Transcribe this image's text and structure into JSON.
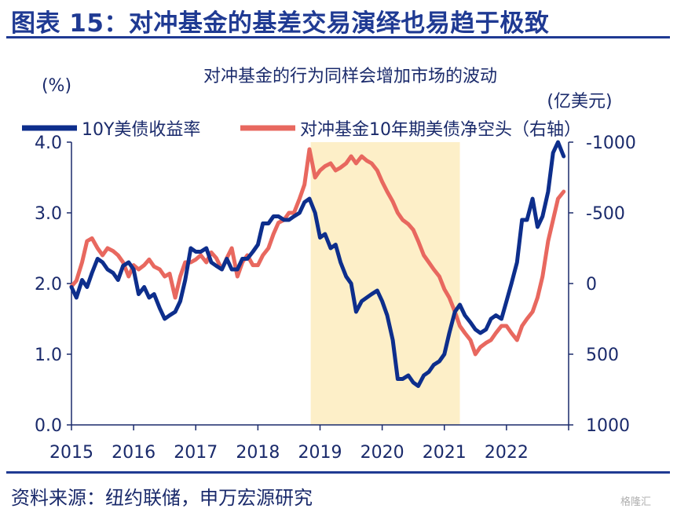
{
  "figure": {
    "title": "图表 15：对冲基金的基差交易演绎也易趋于极致",
    "source": "资料来源：纽约联储，申万宏源研究",
    "watermark": "格隆汇"
  },
  "colors": {
    "accent": "#1f3a93",
    "series_10y": "#0d2e8c",
    "series_hedge": "#e8685f",
    "highlight": "#fdefc8",
    "axis_text": "#1a2a6b"
  },
  "chart_data": {
    "type": "line",
    "title": "对冲基金的行为同样会增加市场的波动",
    "left_axis": {
      "label": "(%)",
      "ylim": [
        0.0,
        4.0
      ],
      "ticks": [
        "0.0",
        "1.0",
        "2.0",
        "3.0",
        "4.0"
      ]
    },
    "right_axis": {
      "label": "(亿美元)",
      "inverted": true,
      "ylim": [
        1000,
        -1000
      ],
      "ticks": [
        "1000",
        "500",
        "0",
        "-500",
        "-1000"
      ]
    },
    "x_axis": {
      "ticks": [
        "2015",
        "2016",
        "2017",
        "2018",
        "2019",
        "2020",
        "2021",
        "2022"
      ],
      "range": [
        2015.0,
        2023.0
      ]
    },
    "highlight_period": [
      2018.85,
      2021.25
    ],
    "legend": {
      "placement": "top",
      "labels": [
        "10Y美债收益率",
        "对冲基金10年期美债净空头（右轴）"
      ]
    },
    "series": [
      {
        "name": "10Y美债收益率",
        "axis": "left",
        "x": [
          2015.0,
          2015.08,
          2015.17,
          2015.25,
          2015.33,
          2015.42,
          2015.5,
          2015.58,
          2015.67,
          2015.75,
          2015.83,
          2015.92,
          2016.0,
          2016.08,
          2016.17,
          2016.25,
          2016.33,
          2016.42,
          2016.5,
          2016.58,
          2016.67,
          2016.75,
          2016.83,
          2016.92,
          2017.0,
          2017.08,
          2017.17,
          2017.25,
          2017.33,
          2017.42,
          2017.5,
          2017.58,
          2017.67,
          2017.75,
          2017.83,
          2017.92,
          2018.0,
          2018.08,
          2018.17,
          2018.25,
          2018.33,
          2018.42,
          2018.5,
          2018.58,
          2018.67,
          2018.75,
          2018.83,
          2018.92,
          2019.0,
          2019.08,
          2019.17,
          2019.25,
          2019.33,
          2019.42,
          2019.5,
          2019.58,
          2019.67,
          2019.75,
          2019.83,
          2019.92,
          2020.0,
          2020.08,
          2020.17,
          2020.25,
          2020.33,
          2020.42,
          2020.5,
          2020.58,
          2020.67,
          2020.75,
          2020.83,
          2020.92,
          2021.0,
          2021.08,
          2021.17,
          2021.25,
          2021.33,
          2021.42,
          2021.5,
          2021.58,
          2021.67,
          2021.75,
          2021.83,
          2021.92,
          2022.0,
          2022.08,
          2022.17,
          2022.25,
          2022.33,
          2022.42,
          2022.5,
          2022.58,
          2022.67,
          2022.75,
          2022.83,
          2022.92
        ],
        "values": [
          1.95,
          1.8,
          2.05,
          1.95,
          2.15,
          2.35,
          2.3,
          2.2,
          2.15,
          2.05,
          2.25,
          2.3,
          2.2,
          1.85,
          1.95,
          1.8,
          1.85,
          1.65,
          1.5,
          1.55,
          1.6,
          1.75,
          2.05,
          2.5,
          2.45,
          2.45,
          2.5,
          2.3,
          2.25,
          2.2,
          2.35,
          2.2,
          2.2,
          2.35,
          2.35,
          2.45,
          2.55,
          2.85,
          2.85,
          2.95,
          2.95,
          2.9,
          2.9,
          2.95,
          3.0,
          3.15,
          3.2,
          3.0,
          2.65,
          2.7,
          2.5,
          2.55,
          2.3,
          2.1,
          2.0,
          1.6,
          1.75,
          1.8,
          1.85,
          1.9,
          1.75,
          1.55,
          1.2,
          0.65,
          0.65,
          0.7,
          0.6,
          0.55,
          0.7,
          0.75,
          0.85,
          0.9,
          1.0,
          1.3,
          1.6,
          1.7,
          1.55,
          1.45,
          1.35,
          1.3,
          1.35,
          1.5,
          1.55,
          1.5,
          1.75,
          2.0,
          2.3,
          2.9,
          2.9,
          3.2,
          2.8,
          2.95,
          3.3,
          3.85,
          4.0,
          3.8
        ]
      },
      {
        "name": "对冲基金10年期美债净空头（右轴）",
        "axis": "right",
        "x": [
          2015.0,
          2015.08,
          2015.17,
          2015.25,
          2015.33,
          2015.42,
          2015.5,
          2015.58,
          2015.67,
          2015.75,
          2015.83,
          2015.92,
          2016.0,
          2016.08,
          2016.17,
          2016.25,
          2016.33,
          2016.42,
          2016.5,
          2016.58,
          2016.67,
          2016.75,
          2016.83,
          2016.92,
          2017.0,
          2017.08,
          2017.17,
          2017.25,
          2017.33,
          2017.42,
          2017.5,
          2017.58,
          2017.67,
          2017.75,
          2017.83,
          2017.92,
          2018.0,
          2018.08,
          2018.17,
          2018.25,
          2018.33,
          2018.42,
          2018.5,
          2018.58,
          2018.67,
          2018.75,
          2018.83,
          2018.92,
          2019.0,
          2019.08,
          2019.17,
          2019.25,
          2019.33,
          2019.42,
          2019.5,
          2019.58,
          2019.67,
          2019.75,
          2019.83,
          2019.92,
          2020.0,
          2020.08,
          2020.17,
          2020.25,
          2020.33,
          2020.42,
          2020.5,
          2020.58,
          2020.67,
          2020.75,
          2020.83,
          2020.92,
          2021.0,
          2021.08,
          2021.17,
          2021.25,
          2021.33,
          2021.42,
          2021.5,
          2021.58,
          2021.67,
          2021.75,
          2021.83,
          2021.92,
          2022.0,
          2022.08,
          2022.17,
          2022.25,
          2022.33,
          2022.42,
          2022.5,
          2022.58,
          2022.67,
          2022.75,
          2022.83,
          2022.92
        ],
        "values": [
          20,
          -20,
          -150,
          -300,
          -320,
          -250,
          -200,
          -250,
          -230,
          -200,
          -150,
          -50,
          -130,
          -100,
          -130,
          -170,
          -120,
          -100,
          -50,
          -70,
          100,
          -50,
          -150,
          -150,
          -170,
          -200,
          -150,
          -220,
          -180,
          -100,
          -180,
          -250,
          -50,
          -150,
          -200,
          -130,
          -130,
          -200,
          -250,
          -350,
          -430,
          -450,
          -500,
          -500,
          -600,
          -700,
          -950,
          -750,
          -800,
          -830,
          -850,
          -800,
          -820,
          -850,
          -900,
          -850,
          -900,
          -870,
          -850,
          -800,
          -720,
          -650,
          -580,
          -500,
          -450,
          -420,
          -380,
          -300,
          -200,
          -150,
          -100,
          -50,
          40,
          100,
          200,
          300,
          350,
          400,
          500,
          450,
          420,
          400,
          350,
          300,
          300,
          350,
          400,
          300,
          250,
          200,
          100,
          -50,
          -300,
          -450,
          -600,
          -650
        ]
      }
    ]
  }
}
